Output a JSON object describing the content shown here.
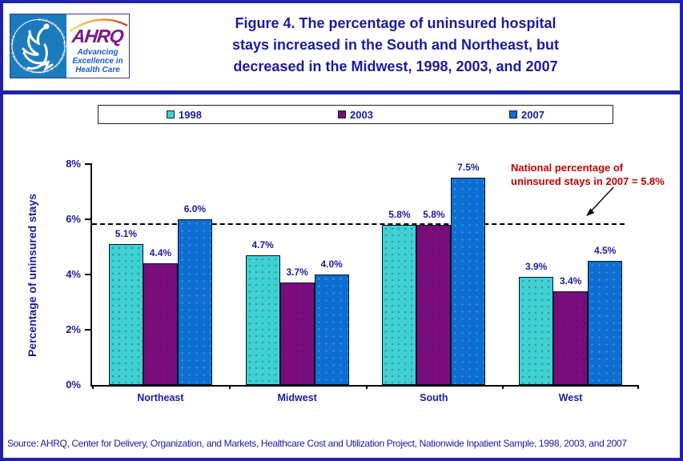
{
  "header": {
    "logo": {
      "seal_text": "DEPARTMENT OF HEALTH & HUMAN SERVICES • USA",
      "ahrq": "AHRQ",
      "tagline_lines": [
        "Advancing",
        "Excellence in",
        "Health Care"
      ]
    },
    "title_lines": [
      "Figure 4. The percentage of uninsured hospital",
      "stays increased in the South and Northeast, but",
      "decreased in the Midwest, 1998, 2003, and 2007"
    ],
    "title_color": "#1b1b9e"
  },
  "legend": {
    "items": [
      {
        "label": "1998",
        "color": "#3fd0d0"
      },
      {
        "label": "2003",
        "color": "#7b0c7b"
      },
      {
        "label": "2007",
        "color": "#0d6fd2"
      }
    ]
  },
  "chart_data": {
    "type": "bar",
    "categories": [
      "Northeast",
      "Midwest",
      "South",
      "West"
    ],
    "series": [
      {
        "name": "1998",
        "color": "#3fd0d0",
        "values": [
          5.1,
          4.7,
          5.8,
          3.9
        ]
      },
      {
        "name": "2003",
        "color": "#7b0c7b",
        "values": [
          4.4,
          3.7,
          5.8,
          3.4
        ]
      },
      {
        "name": "2007",
        "color": "#0d6fd2",
        "values": [
          6.0,
          4.0,
          7.5,
          4.5
        ]
      }
    ],
    "title": "Figure 4. The percentage of uninsured hospital stays increased in the South and Northeast, but decreased in the Midwest, 1998, 2003, and 2007",
    "xlabel": "",
    "ylabel": "Percentage of uninsured stays",
    "ylim": [
      0,
      8
    ],
    "ytick_labels": [
      "0%",
      "2%",
      "4%",
      "6%",
      "8%"
    ],
    "ytick_values": [
      0,
      2,
      4,
      6,
      8
    ],
    "grid": false,
    "legend_position": "top",
    "data_label_suffix": "%",
    "reference_line": {
      "value": 5.8,
      "style": "dashed",
      "color": "#000000"
    }
  },
  "annotation": {
    "line1": "National percentage of",
    "line2": "uninsured stays in 2007 = 5.8%",
    "color": "#c00000"
  },
  "source": "Source: AHRQ, Center for Delivery, Organization, and Markets, Healthcare Cost and Utilization Project, Nationwide Inpatient Sample, 1998, 2003, and 2007"
}
